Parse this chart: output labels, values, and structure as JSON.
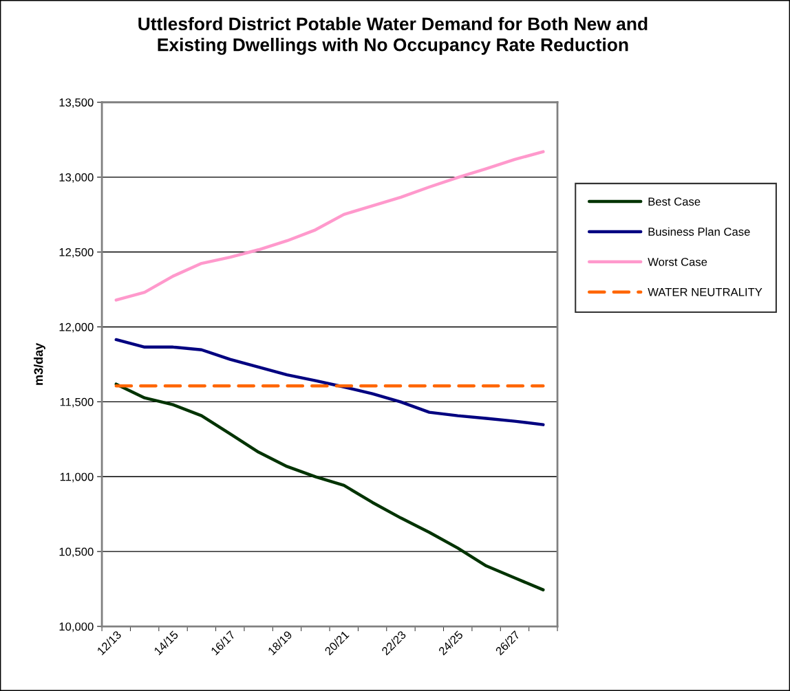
{
  "chart_data": {
    "type": "line",
    "title": "Uttlesford District Potable Water Demand for Both New and\nExisting Dwellings with No Occupancy Rate Reduction",
    "ylabel": "m3/day",
    "categories": [
      "12/13",
      null,
      "14/15",
      null,
      "16/17",
      null,
      "18/19",
      null,
      "20/21",
      null,
      "22/23",
      null,
      "24/25",
      null,
      "26/27",
      null
    ],
    "series": [
      {
        "name": "Best Case",
        "color": "#003300",
        "values": [
          11618,
          11526,
          11480,
          11407,
          11286,
          11164,
          11068,
          10999,
          10942,
          10828,
          10724,
          10628,
          10523,
          10404,
          10324,
          10244
        ]
      },
      {
        "name": "Business Plan Case",
        "color": "#000080",
        "values": [
          11915,
          11865,
          11865,
          11847,
          11783,
          11732,
          11680,
          11641,
          11599,
          11554,
          11499,
          11430,
          11407,
          11389,
          11370,
          11347
        ]
      },
      {
        "name": "Worst Case",
        "color": "#ff99cc",
        "values": [
          12179,
          12231,
          12339,
          12424,
          12465,
          12515,
          12575,
          12648,
          12751,
          12808,
          12866,
          12934,
          12998,
          13056,
          13118,
          13170
        ]
      },
      {
        "name": "WATER NEUTRALITY",
        "color": "#ff6600",
        "line_style": "dashed",
        "values": [
          11606,
          11606,
          11606,
          11606,
          11606,
          11606,
          11606,
          11606,
          11606,
          11606,
          11606,
          11606,
          11606,
          11606,
          11606,
          11606
        ]
      }
    ],
    "ylim": [
      10000,
      13500
    ],
    "yticks": [
      {
        "value": 10000,
        "label": "10,000"
      },
      {
        "value": 10500,
        "label": "10,500"
      },
      {
        "value": 11000,
        "label": "11,000"
      },
      {
        "value": 11500,
        "label": "11,500"
      },
      {
        "value": 12000,
        "label": "12,000"
      },
      {
        "value": 12500,
        "label": "12,500"
      },
      {
        "value": 13000,
        "label": "13,000"
      },
      {
        "value": 13500,
        "label": "13,500"
      }
    ],
    "grid": "y",
    "legend": "right",
    "marker": "none",
    "line_style": "solid"
  }
}
